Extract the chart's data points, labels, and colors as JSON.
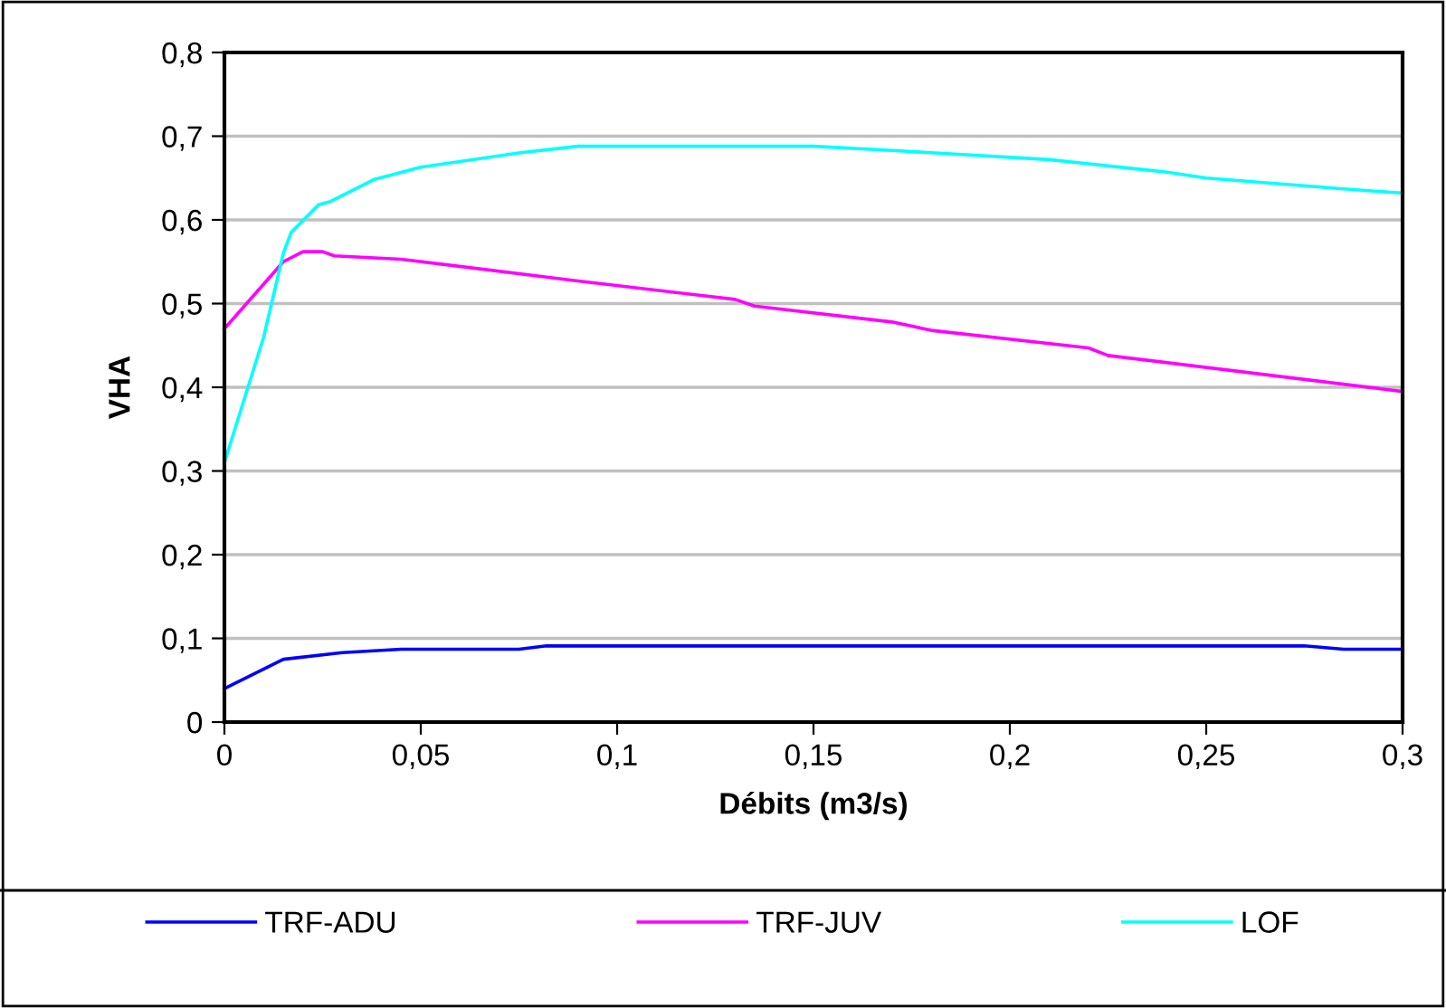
{
  "chart_data": {
    "type": "line",
    "xlabel": "Débits (m3/s)",
    "ylabel": "VHA",
    "xlim": [
      0,
      0.3
    ],
    "xticks": [
      0,
      {
        "value": 0.05,
        "label": "0,05"
      },
      {
        "value": 0.1,
        "label": "0,1"
      },
      {
        "value": 0.15,
        "label": "0,15"
      },
      {
        "value": 0.2,
        "label": "0,2"
      },
      {
        "value": 0.25,
        "label": "0,25"
      },
      {
        "value": 0.3,
        "label": "0,3"
      }
    ],
    "ylim": [
      0,
      0.8
    ],
    "yticks": [
      0,
      {
        "value": 0.1,
        "label": "0,1"
      },
      {
        "value": 0.2,
        "label": "0,2"
      },
      {
        "value": 0.3,
        "label": "0,3"
      },
      {
        "value": 0.4,
        "label": "0,4"
      },
      {
        "value": 0.5,
        "label": "0,5"
      },
      {
        "value": 0.6,
        "label": "0,6"
      },
      {
        "value": 0.7,
        "label": "0,7"
      },
      {
        "value": 0.8,
        "label": "0,8"
      }
    ],
    "grid": "y",
    "legend": "bottom",
    "marker": "none",
    "line_style": "solid",
    "series": [
      {
        "name": "TRF-ADU",
        "color": "#0000ff",
        "x": [
          0,
          0.015,
          0.03,
          0.045,
          0.075,
          0.082,
          0.275,
          0.285,
          0.3
        ],
        "values": [
          0.04,
          0.075,
          0.083,
          0.087,
          0.087,
          0.091,
          0.091,
          0.087,
          0.087
        ]
      },
      {
        "name": "TRF-JUV",
        "color": "#ff00ff",
        "x": [
          0,
          0.015,
          0.02,
          0.025,
          0.028,
          0.045,
          0.09,
          0.13,
          0.135,
          0.17,
          0.18,
          0.22,
          0.225,
          0.3
        ],
        "values": [
          0.47,
          0.55,
          0.562,
          0.562,
          0.557,
          0.553,
          0.527,
          0.505,
          0.497,
          0.478,
          0.468,
          0.447,
          0.438,
          0.395
        ]
      },
      {
        "name": "LOF",
        "color": "#00ffff",
        "x": [
          0,
          0.01,
          0.015,
          0.017,
          0.024,
          0.027,
          0.038,
          0.05,
          0.075,
          0.09,
          0.15,
          0.17,
          0.21,
          0.22,
          0.23,
          0.24,
          0.25,
          0.285,
          0.3
        ],
        "values": [
          0.31,
          0.46,
          0.56,
          0.585,
          0.618,
          0.622,
          0.648,
          0.663,
          0.68,
          0.688,
          0.688,
          0.683,
          0.672,
          0.667,
          0.662,
          0.657,
          0.65,
          0.637,
          0.632
        ]
      }
    ]
  }
}
